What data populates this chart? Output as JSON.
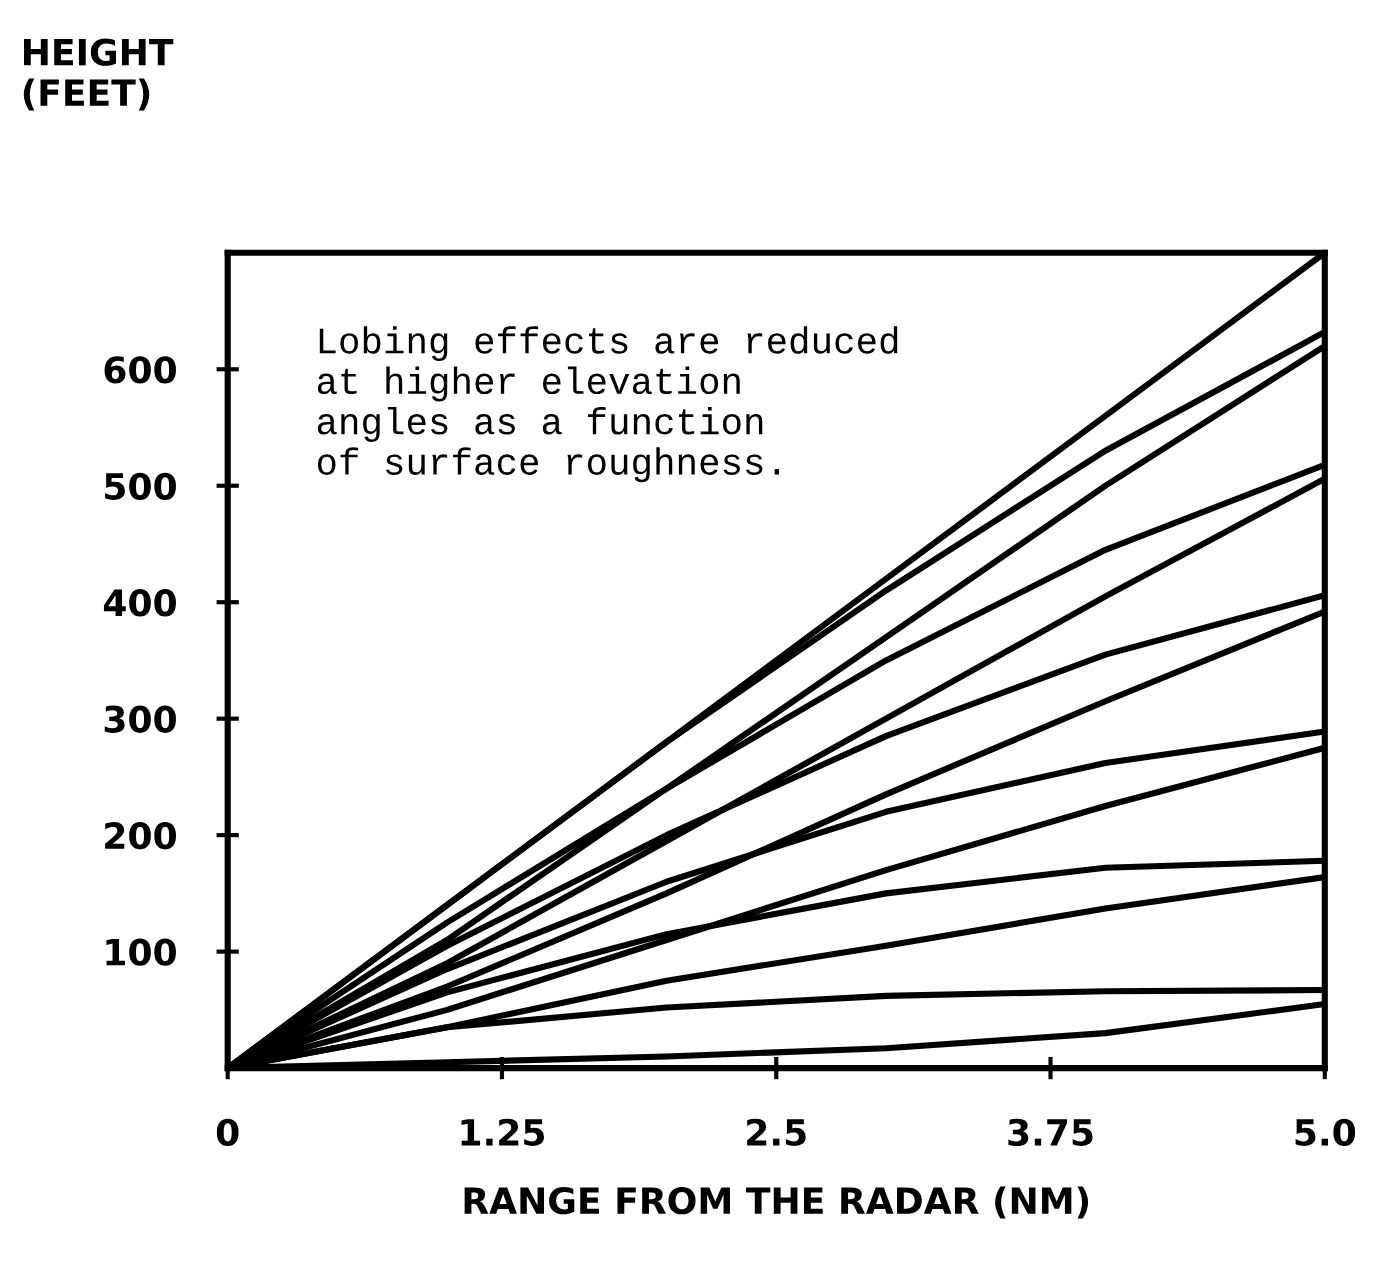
{
  "chart_data": {
    "type": "line",
    "ylabel": "HEIGHT\n(FEET)",
    "xlabel": "RANGE FROM THE RADAR (NM)",
    "x": [
      0,
      1,
      2,
      3,
      4,
      5
    ],
    "series": [
      {
        "color": "#000000",
        "values": [
          0,
          140,
          280,
          420,
          560,
          700
        ]
      },
      {
        "color": "#000000",
        "values": [
          0,
          140,
          280,
          410,
          530,
          632
        ]
      },
      {
        "color": "#000000",
        "values": [
          0,
          110,
          240,
          370,
          500,
          620
        ]
      },
      {
        "color": "#000000",
        "values": [
          0,
          125,
          240,
          350,
          445,
          518
        ]
      },
      {
        "color": "#000000",
        "values": [
          0,
          90,
          195,
          300,
          405,
          506
        ]
      },
      {
        "color": "#000000",
        "values": [
          0,
          105,
          200,
          285,
          355,
          406
        ]
      },
      {
        "color": "#000000",
        "values": [
          0,
          70,
          150,
          235,
          315,
          392
        ]
      },
      {
        "color": "#000000",
        "values": [
          0,
          85,
          160,
          220,
          262,
          289
        ]
      },
      {
        "color": "#000000",
        "values": [
          0,
          50,
          110,
          170,
          225,
          275
        ]
      },
      {
        "color": "#000000",
        "values": [
          0,
          65,
          115,
          150,
          172,
          178
        ]
      },
      {
        "color": "#000000",
        "values": [
          0,
          35,
          75,
          105,
          137,
          164
        ]
      },
      {
        "color": "#000000",
        "values": [
          0,
          35,
          52,
          62,
          66,
          67
        ]
      },
      {
        "color": "#000000",
        "values": [
          0,
          5,
          10,
          17,
          30,
          55
        ]
      }
    ],
    "xlim": [
      0,
      5
    ],
    "ylim": [
      0,
      700
    ],
    "xticks": [
      0,
      1.25,
      2.5,
      3.75,
      {
        "value": 5,
        "label": "5.0"
      }
    ],
    "yticks": [
      100,
      200,
      300,
      400,
      500,
      600
    ],
    "annotations": [
      "Lobing effects are reduced\nat higher elevation\nangles as a function\nof surface roughness."
    ],
    "grid": false,
    "legend": false,
    "marker": "none",
    "line_style": "solid"
  }
}
